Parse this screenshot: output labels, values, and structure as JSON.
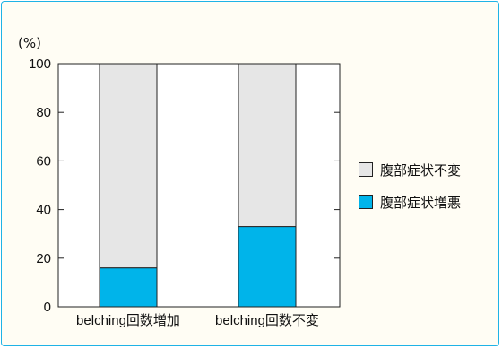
{
  "chart_data": {
    "type": "bar",
    "stacked": true,
    "unit_label": "(%)",
    "categories": [
      "belching回数増加",
      "belching回数不変"
    ],
    "series": [
      {
        "name": "腹部症状増悪",
        "values": [
          16,
          33
        ],
        "color": "#00b4ea"
      },
      {
        "name": "腹部症状不変",
        "values": [
          84,
          67
        ],
        "color": "#e6e6e6"
      }
    ],
    "ylim": [
      0,
      100
    ],
    "yticks": [
      0,
      20,
      40,
      60,
      80,
      100
    ],
    "legend_position": "right",
    "grid": false
  },
  "legend": {
    "items": [
      {
        "label": "腹部症状不変",
        "color": "#e6e6e6"
      },
      {
        "label": "腹部症状増悪",
        "color": "#00b4ea"
      }
    ]
  }
}
